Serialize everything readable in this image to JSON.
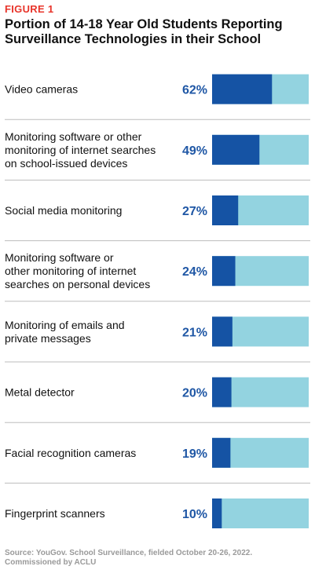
{
  "figure_label": "FIGURE 1",
  "source": "Source: YouGov. School Surveillance, fielded October 20-26, 2022. Commissioned by ACLU",
  "colors": {
    "bar_value": "#1553a4",
    "bar_remainder": "#93d3e0",
    "value_text": "#1f57a5",
    "figure_label": "#e8342a"
  },
  "chart_data": {
    "type": "bar",
    "orientation": "horizontal",
    "stacked_to_100": true,
    "title": "Portion of 14-18 Year Old Students Reporting Surveillance Technologies in their School",
    "categories": [
      "Video cameras",
      "Monitoring software or other monitoring of internet searches on school-issued devices",
      "Social media monitoring",
      "Monitoring software or other monitoring of internet searches on personal devices",
      "Monitoring of emails and private messages",
      "Metal detector",
      "Facial recognition cameras",
      "Fingerprint scanners"
    ],
    "category_lines": [
      [
        "Video cameras"
      ],
      [
        "Monitoring software or other",
        "monitoring of internet searches",
        "on school-issued devices"
      ],
      [
        "Social media monitoring"
      ],
      [
        "Monitoring software or",
        "other monitoring of internet",
        "searches on personal devices"
      ],
      [
        "Monitoring of emails and",
        "private messages"
      ],
      [
        "Metal detector"
      ],
      [
        "Facial recognition cameras"
      ],
      [
        "Fingerprint scanners"
      ]
    ],
    "values": [
      62,
      49,
      27,
      24,
      21,
      20,
      19,
      10
    ],
    "value_labels": [
      "62%",
      "49%",
      "27%",
      "24%",
      "21%",
      "20%",
      "19%",
      "10%"
    ],
    "xlim": [
      0,
      100
    ],
    "legend": "none",
    "grid": false
  }
}
